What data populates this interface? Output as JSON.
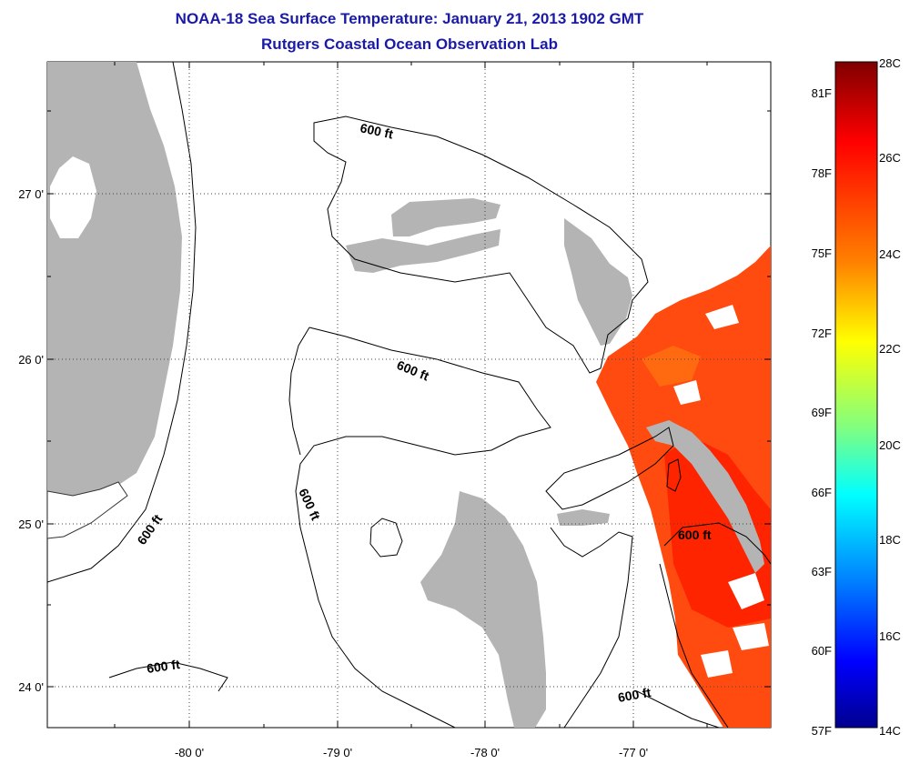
{
  "title": {
    "line1": "NOAA-18 Sea Surface Temperature:  January 21, 2013 1902 GMT",
    "line2": "Rutgers Coastal Ocean Observation Lab"
  },
  "map": {
    "lon_ticks": [
      "-80 0'",
      "-79 0'",
      "-78 0'",
      "-77 0'"
    ],
    "lat_ticks": [
      "27 0'",
      "26 0'",
      "25 0'",
      "24 0'"
    ],
    "contour_labels": [
      "600 ft",
      "600 ft",
      "600 ft",
      "600 ft",
      "600 ft",
      "600 ft"
    ],
    "colors": {
      "land": "#b4b4b4",
      "sst_warm": "#ff4a10",
      "sst_hot": "#ff2000",
      "contour": "#000000"
    }
  },
  "colorbar": {
    "celsius_labels": [
      "28C",
      "26C",
      "24C",
      "22C",
      "20C",
      "18C",
      "16C",
      "14C"
    ],
    "fahrenheit_labels": [
      "81F",
      "78F",
      "75F",
      "72F",
      "69F",
      "66F",
      "63F",
      "60F",
      "57F"
    ],
    "gradient_stops": [
      "#7f0000",
      "#ff0000",
      "#ff8000",
      "#ffff00",
      "#80ff80",
      "#00ffff",
      "#0080ff",
      "#0000ff",
      "#00008f"
    ]
  }
}
